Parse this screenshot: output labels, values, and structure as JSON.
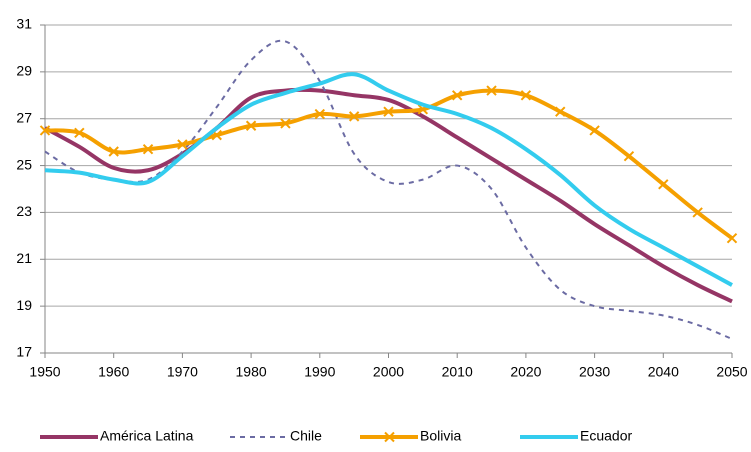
{
  "chart_data": {
    "type": "line",
    "x": [
      1950,
      1955,
      1960,
      1965,
      1970,
      1975,
      1980,
      1985,
      1990,
      1995,
      2000,
      2005,
      2010,
      2015,
      2020,
      2025,
      2030,
      2035,
      2040,
      2045,
      2050
    ],
    "series": [
      {
        "name": "América Latina",
        "color": "#953565",
        "dash": false,
        "marker": false,
        "values": [
          26.6,
          25.8,
          24.9,
          24.8,
          25.5,
          26.6,
          27.9,
          28.2,
          28.2,
          28.0,
          27.8,
          27.1,
          26.2,
          25.3,
          24.4,
          23.5,
          22.5,
          21.6,
          20.7,
          19.9,
          19.2
        ]
      },
      {
        "name": "Chile",
        "color": "#6b6ba3",
        "dash": true,
        "marker": false,
        "values": [
          25.6,
          24.7,
          24.4,
          24.4,
          25.6,
          27.5,
          29.5,
          30.3,
          28.6,
          25.5,
          24.3,
          24.4,
          25.0,
          24.0,
          21.5,
          19.7,
          19.0,
          18.8,
          18.6,
          18.2,
          17.6
        ]
      },
      {
        "name": "Bolivia",
        "color": "#f5a000",
        "dash": false,
        "marker": true,
        "values": [
          26.5,
          26.4,
          25.6,
          25.7,
          25.9,
          26.3,
          26.7,
          26.8,
          27.2,
          27.1,
          27.3,
          27.4,
          28.0,
          28.2,
          28.0,
          27.3,
          26.5,
          25.4,
          24.2,
          23.0,
          21.9
        ]
      },
      {
        "name": "Ecuador",
        "color": "#33ccee",
        "dash": false,
        "marker": false,
        "values": [
          24.8,
          24.7,
          24.4,
          24.3,
          25.4,
          26.6,
          27.6,
          28.1,
          28.5,
          28.9,
          28.2,
          27.6,
          27.2,
          26.6,
          25.7,
          24.6,
          23.3,
          22.3,
          21.5,
          20.7,
          19.9
        ]
      }
    ],
    "xlim": [
      1950,
      2050
    ],
    "xticks": [
      1950,
      1960,
      1970,
      1980,
      1990,
      2000,
      2010,
      2020,
      2030,
      2040,
      2050
    ],
    "ylim": [
      17,
      31
    ],
    "yticks": [
      17,
      19,
      21,
      23,
      25,
      27,
      29,
      31
    ],
    "grid": true,
    "legend": "bottom"
  }
}
